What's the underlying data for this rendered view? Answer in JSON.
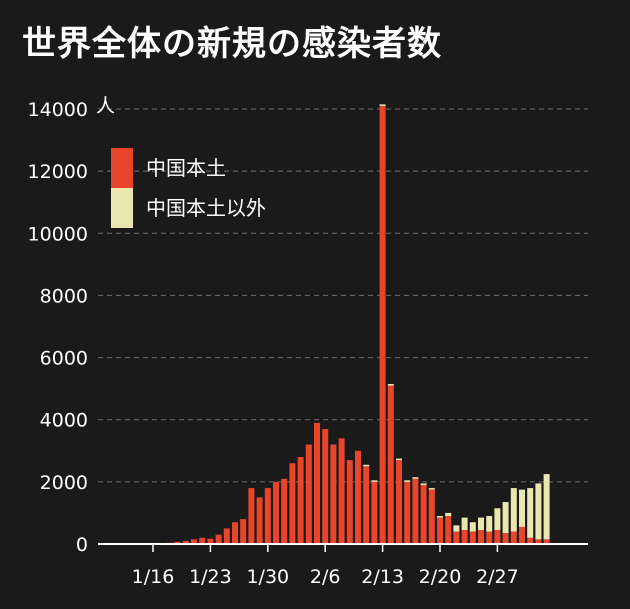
{
  "title": "世界全体の新規の感染者数",
  "chart_data": {
    "type": "bar",
    "stacked": true,
    "title": "世界全体の新規の感染者数",
    "ylabel": "人",
    "ylim": [
      0,
      14500
    ],
    "yticks": [
      0,
      2000,
      4000,
      6000,
      8000,
      10000,
      12000,
      14000
    ],
    "grid": true,
    "legend_position": "top-left",
    "x": [
      "1/11",
      "1/12",
      "1/13",
      "1/14",
      "1/15",
      "1/16",
      "1/17",
      "1/18",
      "1/19",
      "1/20",
      "1/21",
      "1/22",
      "1/23",
      "1/24",
      "1/25",
      "1/26",
      "1/27",
      "1/28",
      "1/29",
      "1/30",
      "1/31",
      "2/1",
      "2/2",
      "2/3",
      "2/4",
      "2/5",
      "2/6",
      "2/7",
      "2/8",
      "2/9",
      "2/10",
      "2/11",
      "2/12",
      "2/13",
      "2/14",
      "2/15",
      "2/16",
      "2/17",
      "2/18",
      "2/19",
      "2/20",
      "2/21",
      "2/22",
      "2/23",
      "2/24",
      "2/25",
      "2/26",
      "2/27",
      "2/28",
      "2/29",
      "3/1",
      "3/2",
      "3/3",
      "3/4"
    ],
    "xtick_labels": [
      "1/16",
      "1/23",
      "1/30",
      "2/6",
      "2/13",
      "2/20",
      "2/27"
    ],
    "series": [
      {
        "name": "中国本土",
        "color": "#e8452a",
        "values": [
          0,
          0,
          0,
          0,
          0,
          0,
          30,
          40,
          70,
          100,
          150,
          200,
          170,
          300,
          500,
          700,
          800,
          1800,
          1500,
          1800,
          2000,
          2100,
          2600,
          2800,
          3200,
          3900,
          3700,
          3200,
          3400,
          2700,
          3000,
          2500,
          2000,
          14100,
          5100,
          2700,
          2000,
          2100,
          1900,
          1750,
          850,
          900,
          400,
          450,
          400,
          450,
          400,
          450,
          350,
          400,
          550,
          200,
          150,
          150
        ]
      },
      {
        "name": "中国本土以外",
        "color": "#e9e6b0",
        "values": [
          0,
          0,
          0,
          0,
          0,
          0,
          0,
          0,
          0,
          0,
          0,
          0,
          0,
          0,
          0,
          0,
          0,
          0,
          0,
          0,
          0,
          0,
          0,
          0,
          0,
          0,
          0,
          0,
          0,
          0,
          0,
          50,
          50,
          50,
          50,
          50,
          50,
          50,
          50,
          50,
          50,
          100,
          200,
          400,
          300,
          400,
          500,
          700,
          1000,
          1400,
          1200,
          1600,
          1800,
          2100
        ]
      }
    ]
  }
}
